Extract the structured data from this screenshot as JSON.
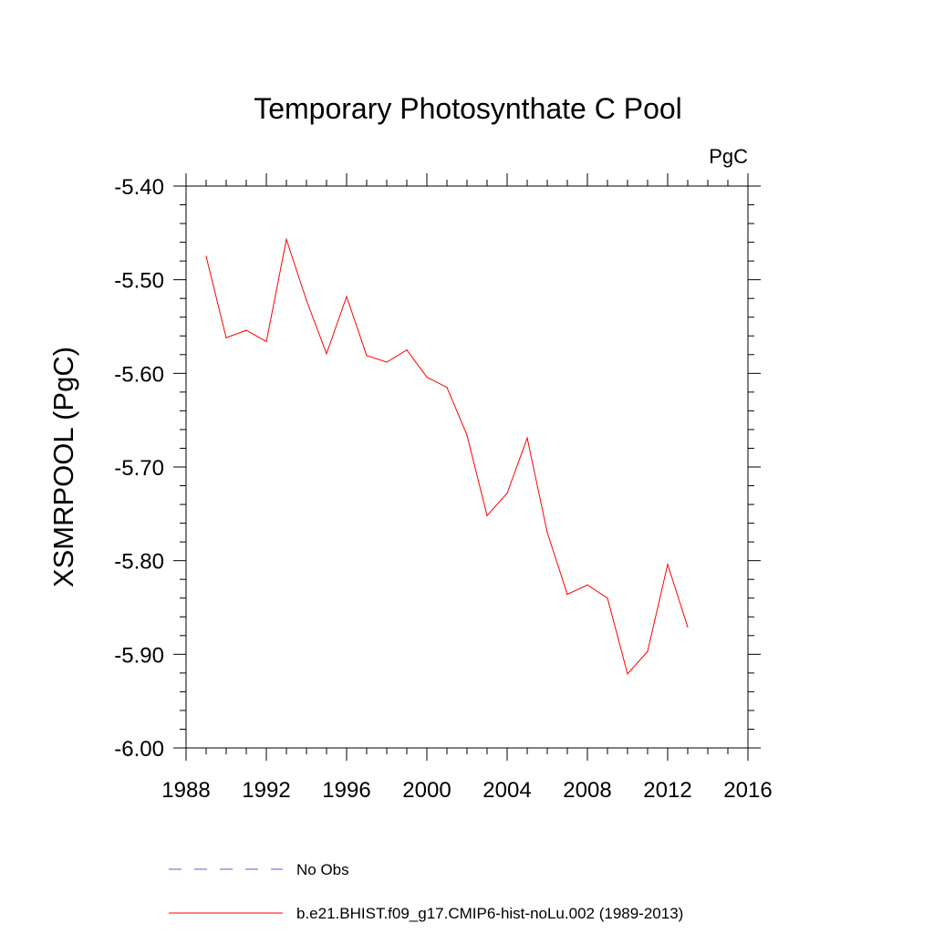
{
  "chart_data": {
    "type": "line",
    "title": "Temporary Photosynthate C Pool",
    "units": "PgC",
    "xlabel": "",
    "ylabel": "XSMRPOOL  (PgC)",
    "xlim": [
      1988,
      2016
    ],
    "ylim": [
      -6.0,
      -5.4
    ],
    "x_ticks": [
      1988,
      1992,
      1996,
      2000,
      2004,
      2008,
      2012,
      2016
    ],
    "y_ticks": [
      -6.0,
      -5.9,
      -5.8,
      -5.7,
      -5.6,
      -5.5,
      -5.4
    ],
    "y_tick_labels": [
      "-6.00",
      "-5.90",
      "-5.80",
      "-5.70",
      "-5.60",
      "-5.50",
      "-5.40"
    ],
    "grid": false,
    "series": [
      {
        "name": "b.e21.BHIST.f09_g17.CMIP6-hist-noLu.002 (1989-2013)",
        "color": "#ff0000",
        "style": "solid",
        "x": [
          1989,
          1990,
          1991,
          1992,
          1993,
          1994,
          1995,
          1996,
          1997,
          1998,
          1999,
          2000,
          2001,
          2002,
          2003,
          2004,
          2005,
          2006,
          2007,
          2008,
          2009,
          2010,
          2011,
          2012,
          2013
        ],
        "y": [
          -5.475,
          -5.562,
          -5.554,
          -5.566,
          -5.457,
          -5.522,
          -5.579,
          -5.518,
          -5.581,
          -5.588,
          -5.575,
          -5.604,
          -5.615,
          -5.666,
          -5.752,
          -5.728,
          -5.669,
          -5.77,
          -5.836,
          -5.826,
          -5.84,
          -5.921,
          -5.897,
          -5.804,
          -5.871
        ]
      }
    ],
    "legend": {
      "position": "bottom",
      "entries": [
        {
          "label": "No Obs",
          "color": "#6a5acd",
          "style": "dashed"
        },
        {
          "label": "b.e21.BHIST.f09_g17.CMIP6-hist-noLu.002 (1989-2013)",
          "color": "#ff0000",
          "style": "solid"
        }
      ]
    }
  }
}
